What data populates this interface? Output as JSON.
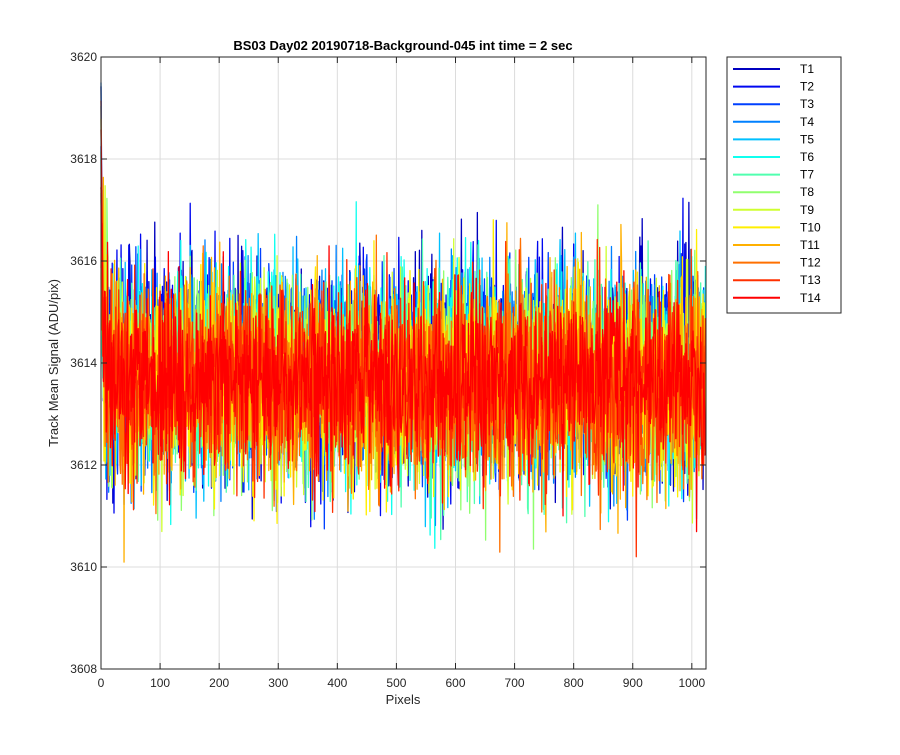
{
  "chart_data": {
    "type": "line",
    "title": "BS03 Day02 20190718-Background-045 int time = 2 sec",
    "xlabel": "Pixels",
    "ylabel": "Track Mean Signal (ADU/pix)",
    "xlim": [
      0,
      1024
    ],
    "ylim": [
      3608,
      3620
    ],
    "xticks": [
      0,
      100,
      200,
      300,
      400,
      500,
      600,
      700,
      800,
      900,
      1000
    ],
    "yticks": [
      3608,
      3610,
      3612,
      3614,
      3616,
      3618,
      3620
    ],
    "grid": true,
    "legend_position": "outside-top-right",
    "n_points": 1024,
    "series": [
      {
        "name": "T1",
        "color": "#0000bf",
        "mean": 3613.9,
        "spread": 1.05,
        "start": 3619.2,
        "seed": 11
      },
      {
        "name": "T2",
        "color": "#0008f0",
        "mean": 3613.9,
        "spread": 1.05,
        "start": 3619.0,
        "seed": 23
      },
      {
        "name": "T3",
        "color": "#0040ff",
        "mean": 3613.85,
        "spread": 1.0,
        "start": 3618.6,
        "seed": 37
      },
      {
        "name": "T4",
        "color": "#0080ff",
        "mean": 3613.8,
        "spread": 1.0,
        "start": 3618.4,
        "seed": 41
      },
      {
        "name": "T5",
        "color": "#00c0ff",
        "mean": 3613.8,
        "spread": 1.0,
        "start": 3618.2,
        "seed": 53
      },
      {
        "name": "T6",
        "color": "#10ffef",
        "mean": 3613.75,
        "spread": 1.0,
        "start": 3618.0,
        "seed": 67
      },
      {
        "name": "T7",
        "color": "#50ffaf",
        "mean": 3613.7,
        "spread": 1.0,
        "start": 3617.8,
        "seed": 71
      },
      {
        "name": "T8",
        "color": "#90ff6f",
        "mean": 3613.7,
        "spread": 1.0,
        "start": 3617.6,
        "seed": 83
      },
      {
        "name": "T9",
        "color": "#cfff30",
        "mean": 3613.65,
        "spread": 1.0,
        "start": 3617.4,
        "seed": 97
      },
      {
        "name": "T10",
        "color": "#ffef00",
        "mean": 3613.6,
        "spread": 1.0,
        "start": 3617.2,
        "seed": 101
      },
      {
        "name": "T11",
        "color": "#ffb000",
        "mean": 3613.6,
        "spread": 1.0,
        "start": 3617.0,
        "seed": 113
      },
      {
        "name": "T12",
        "color": "#ff7000",
        "mean": 3613.6,
        "spread": 0.95,
        "start": 3617.2,
        "seed": 127
      },
      {
        "name": "T13",
        "color": "#ff3000",
        "mean": 3613.6,
        "spread": 0.95,
        "start": 3618.8,
        "seed": 131
      },
      {
        "name": "T14",
        "color": "#ff0000",
        "mean": 3613.6,
        "spread": 0.9,
        "start": 3618.1,
        "seed": 149
      }
    ]
  }
}
